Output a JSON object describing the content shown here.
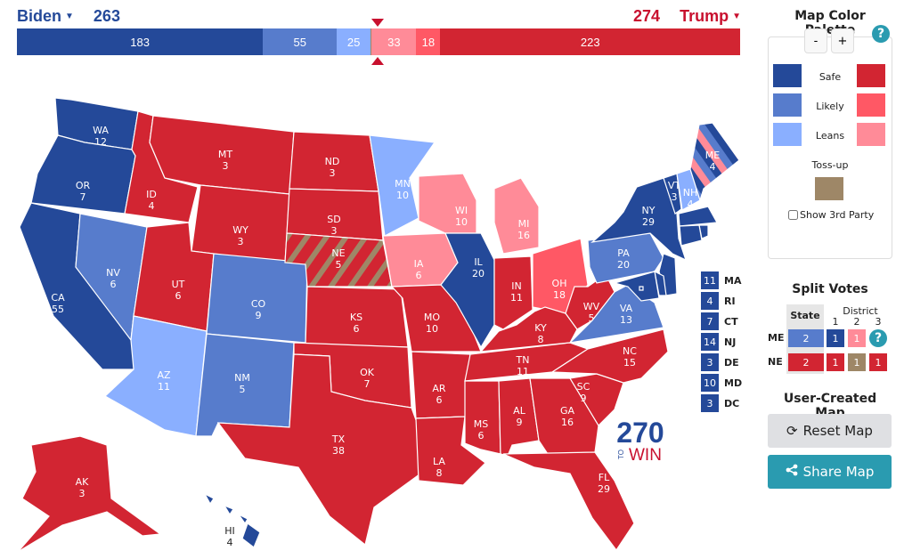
{
  "header": {
    "dem": {
      "name": "Biden",
      "total": "263"
    },
    "rep": {
      "name": "Trump",
      "total": "274"
    }
  },
  "bar": [
    {
      "rating": "safe_d",
      "value": "183"
    },
    {
      "rating": "likely_d",
      "value": "55"
    },
    {
      "rating": "lean_d",
      "value": "25"
    },
    {
      "rating": "tossup",
      "value": ""
    },
    {
      "rating": "lean_r",
      "value": "33"
    },
    {
      "rating": "likely_r",
      "value": "18"
    },
    {
      "rating": "safe_r",
      "value": "223"
    }
  ],
  "bar_ev": [
    183,
    55,
    25,
    1,
    33,
    18,
    223
  ],
  "colors": {
    "safe_d": "#244999",
    "likely_d": "#577ccc",
    "lean_d": "#8aafff",
    "tossup": "#9e8767",
    "lean_r": "#ff8b98",
    "likely_r": "#ff5865",
    "safe_r": "#d22532",
    "accent": "#2a9bb0"
  },
  "palette": {
    "title": "Map Color Palette",
    "minus": "-",
    "plus": "+",
    "help": "?",
    "safe": "Safe",
    "likely": "Likely",
    "leans": "Leans",
    "tossup": "Toss-up",
    "show_third_party": "Show 3rd Party",
    "show_third_party_checked": false
  },
  "states": [
    {
      "abbr": "WA",
      "ev": "12",
      "rating": "safe_d"
    },
    {
      "abbr": "OR",
      "ev": "7",
      "rating": "safe_d"
    },
    {
      "abbr": "CA",
      "ev": "55",
      "rating": "safe_d"
    },
    {
      "abbr": "NV",
      "ev": "6",
      "rating": "likely_d"
    },
    {
      "abbr": "ID",
      "ev": "4",
      "rating": "safe_r"
    },
    {
      "abbr": "MT",
      "ev": "3",
      "rating": "safe_r"
    },
    {
      "abbr": "WY",
      "ev": "3",
      "rating": "safe_r"
    },
    {
      "abbr": "UT",
      "ev": "6",
      "rating": "safe_r"
    },
    {
      "abbr": "AZ",
      "ev": "11",
      "rating": "lean_d"
    },
    {
      "abbr": "CO",
      "ev": "9",
      "rating": "likely_d"
    },
    {
      "abbr": "NM",
      "ev": "5",
      "rating": "likely_d"
    },
    {
      "abbr": "ND",
      "ev": "3",
      "rating": "safe_r"
    },
    {
      "abbr": "SD",
      "ev": "3",
      "rating": "safe_r"
    },
    {
      "abbr": "NE",
      "ev": "5",
      "rating": "split_ne"
    },
    {
      "abbr": "KS",
      "ev": "6",
      "rating": "safe_r"
    },
    {
      "abbr": "OK",
      "ev": "7",
      "rating": "safe_r"
    },
    {
      "abbr": "TX",
      "ev": "38",
      "rating": "safe_r"
    },
    {
      "abbr": "MN",
      "ev": "10",
      "rating": "lean_d"
    },
    {
      "abbr": "IA",
      "ev": "6",
      "rating": "lean_r"
    },
    {
      "abbr": "MO",
      "ev": "10",
      "rating": "safe_r"
    },
    {
      "abbr": "AR",
      "ev": "6",
      "rating": "safe_r"
    },
    {
      "abbr": "LA",
      "ev": "8",
      "rating": "safe_r"
    },
    {
      "abbr": "WI",
      "ev": "10",
      "rating": "lean_r"
    },
    {
      "abbr": "IL",
      "ev": "20",
      "rating": "safe_d"
    },
    {
      "abbr": "MI",
      "ev": "16",
      "rating": "lean_r"
    },
    {
      "abbr": "IN",
      "ev": "11",
      "rating": "safe_r"
    },
    {
      "abbr": "OH",
      "ev": "18",
      "rating": "likely_r"
    },
    {
      "abbr": "KY",
      "ev": "8",
      "rating": "safe_r"
    },
    {
      "abbr": "TN",
      "ev": "11",
      "rating": "safe_r"
    },
    {
      "abbr": "MS",
      "ev": "6",
      "rating": "safe_r"
    },
    {
      "abbr": "AL",
      "ev": "9",
      "rating": "safe_r"
    },
    {
      "abbr": "GA",
      "ev": "16",
      "rating": "safe_r"
    },
    {
      "abbr": "FL",
      "ev": "29",
      "rating": "safe_r"
    },
    {
      "abbr": "SC",
      "ev": "9",
      "rating": "safe_r"
    },
    {
      "abbr": "NC",
      "ev": "15",
      "rating": "safe_r"
    },
    {
      "abbr": "WV",
      "ev": "5",
      "rating": "safe_r"
    },
    {
      "abbr": "VA",
      "ev": "13",
      "rating": "likely_d"
    },
    {
      "abbr": "PA",
      "ev": "20",
      "rating": "likely_d"
    },
    {
      "abbr": "NY",
      "ev": "29",
      "rating": "safe_d"
    },
    {
      "abbr": "VT",
      "ev": "3",
      "rating": "safe_d"
    },
    {
      "abbr": "NH",
      "ev": "4",
      "rating": "lean_d"
    },
    {
      "abbr": "ME",
      "ev": "4",
      "rating": "split_me"
    },
    {
      "abbr": "MA",
      "ev": "11",
      "rating": "safe_d"
    },
    {
      "abbr": "RI",
      "ev": "4",
      "rating": "safe_d"
    },
    {
      "abbr": "CT",
      "ev": "7",
      "rating": "safe_d"
    },
    {
      "abbr": "NJ",
      "ev": "14",
      "rating": "safe_d"
    },
    {
      "abbr": "DE",
      "ev": "3",
      "rating": "safe_d"
    },
    {
      "abbr": "MD",
      "ev": "10",
      "rating": "safe_d"
    },
    {
      "abbr": "DC",
      "ev": "3",
      "rating": "safe_d"
    },
    {
      "abbr": "AK",
      "ev": "3",
      "rating": "safe_r"
    },
    {
      "abbr": "HI",
      "ev": "4",
      "rating": "safe_d"
    }
  ],
  "small_states": [
    {
      "abbr": "MA",
      "ev": "11"
    },
    {
      "abbr": "RI",
      "ev": "4"
    },
    {
      "abbr": "CT",
      "ev": "7"
    },
    {
      "abbr": "NJ",
      "ev": "14"
    },
    {
      "abbr": "DE",
      "ev": "3"
    },
    {
      "abbr": "MD",
      "ev": "10"
    },
    {
      "abbr": "DC",
      "ev": "3"
    }
  ],
  "logo": {
    "number": "270",
    "to": "TO",
    "win": "WIN"
  },
  "split_votes": {
    "title": "Split Votes",
    "state_header": "State",
    "district_header": "District",
    "district_numbers": [
      "1",
      "2",
      "3"
    ],
    "rows": [
      {
        "state": "ME",
        "cells": [
          {
            "value": "2",
            "rating": "likely_d"
          },
          {
            "value": "1",
            "rating": "safe_d"
          },
          {
            "value": "1",
            "rating": "lean_r"
          },
          {
            "value": "?",
            "rating": "help"
          }
        ]
      },
      {
        "state": "NE",
        "cells": [
          {
            "value": "2",
            "rating": "safe_r"
          },
          {
            "value": "1",
            "rating": "safe_r"
          },
          {
            "value": "1",
            "rating": "tossup"
          },
          {
            "value": "1",
            "rating": "safe_r"
          }
        ]
      }
    ]
  },
  "user_map": {
    "title": "User-Created Map",
    "reset": "Reset Map",
    "share": "Share Map"
  }
}
